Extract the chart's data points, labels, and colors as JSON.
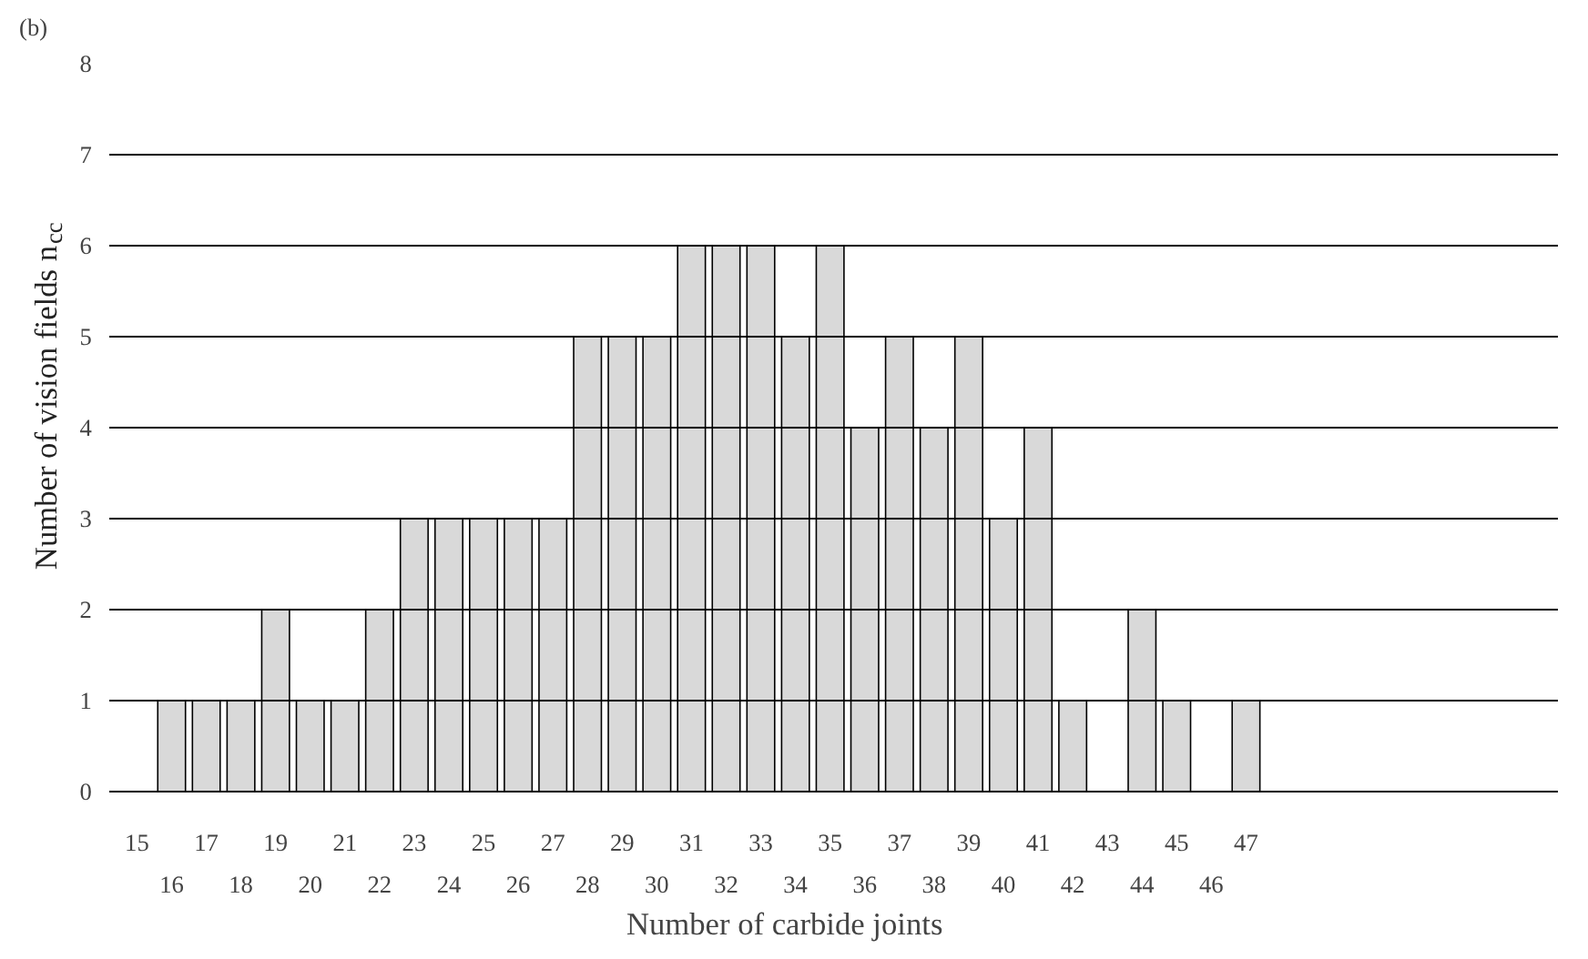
{
  "chart_data": {
    "type": "bar",
    "title": "(b)",
    "xlabel": "Number of carbide  joints",
    "ylabel": "Number of vision fields n$_{cc}$",
    "categories": [
      "15",
      "16",
      "17",
      "18",
      "19",
      "20",
      "21",
      "22",
      "23",
      "24",
      "25",
      "26",
      "27",
      "28",
      "29",
      "30",
      "31",
      "32",
      "33",
      "34",
      "35",
      "36",
      "37",
      "38",
      "39",
      "40",
      "41",
      "42",
      "43",
      "44",
      "45",
      "46",
      "47"
    ],
    "values": [
      null,
      1,
      1,
      1,
      2,
      1,
      1,
      2,
      3,
      3,
      3,
      3,
      3,
      5,
      5,
      5,
      6,
      6,
      6,
      5,
      6,
      4,
      5,
      4,
      5,
      3,
      4,
      1,
      null,
      2,
      1,
      null,
      1
    ],
    "color": "#d9d9d9",
    "ylim": [
      0,
      8
    ],
    "yticks": [
      0,
      1,
      2,
      3,
      4,
      5,
      6,
      7,
      8
    ],
    "grid": "y"
  }
}
